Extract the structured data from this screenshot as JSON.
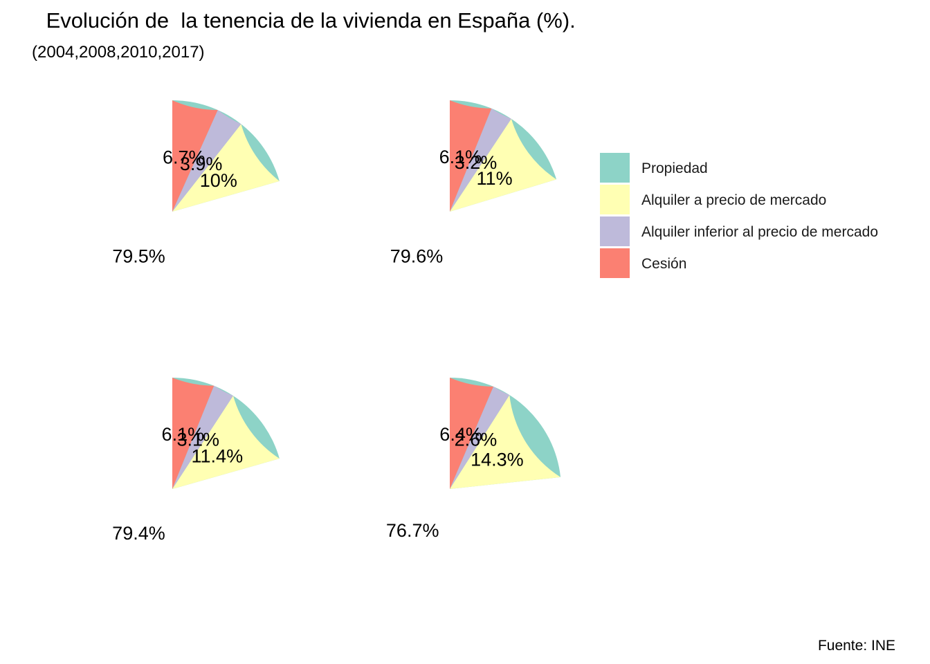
{
  "chart_data": {
    "type": "pie",
    "title": " Evolución de  la tenencia de la vivienda en España (%).",
    "subtitle": "(2004,2008,2010,2017)",
    "caption": "Fuente: INE",
    "legend": {
      "position": "right",
      "entries": [
        {
          "name": "Propiedad",
          "color": "#8DD3C7"
        },
        {
          "name": "Alquiler a precio de mercado",
          "color": "#FFFFB3"
        },
        {
          "name": "Alquiler inferior al precio de mercado",
          "color": "#BEBADA"
        },
        {
          "name": "Cesión",
          "color": "#FB8072"
        }
      ]
    },
    "pies": [
      {
        "values": [
          79.5,
          10,
          3.9,
          6.7
        ],
        "labels": [
          "79.5%",
          "10%",
          "3.9%",
          "6.7%"
        ]
      },
      {
        "values": [
          79.6,
          11,
          3.2,
          6.1
        ],
        "labels": [
          "79.6%",
          "11%",
          "3.2%",
          "6.1%"
        ]
      },
      {
        "values": [
          79.4,
          11.4,
          3.1,
          6.1
        ],
        "labels": [
          "79.4%",
          "11.4%",
          "3.1%",
          "6.1%"
        ]
      },
      {
        "values": [
          76.7,
          14.3,
          2.6,
          6.4
        ],
        "labels": [
          "76.7%",
          "14.3%",
          "2.6%",
          "6.4%"
        ]
      }
    ]
  }
}
